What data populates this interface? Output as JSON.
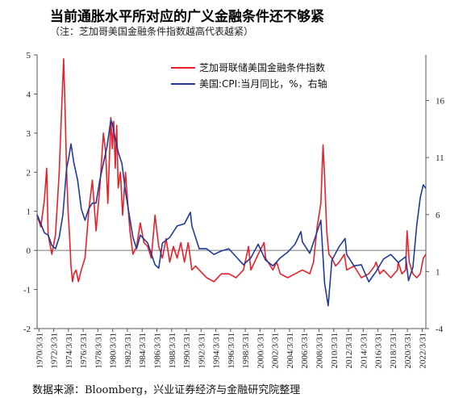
{
  "header": {
    "title": "当前通胀水平所对应的广义金融条件还不够紧",
    "subtitle": "（注：芝加哥美国金融条件指数越高代表越紧）"
  },
  "footer": {
    "source": "数据来源：Bloomberg，兴业证券经济与金融研究院整理"
  },
  "colors": {
    "series1": "#e8202a",
    "series2": "#1f3a9a",
    "axis": "#555555"
  },
  "chart_data": {
    "type": "line",
    "title": "当前通胀水平所对应的广义金融条件还不够紧",
    "xlabel": "",
    "x_ticks": [
      "1970/3/31",
      "1972/3/31",
      "1974/3/31",
      "1976/3/31",
      "1978/3/31",
      "1980/3/31",
      "1982/3/31",
      "1984/3/31",
      "1986/3/31",
      "1988/3/31",
      "1990/3/31",
      "1992/3/31",
      "1994/3/31",
      "1996/3/31",
      "1998/3/31",
      "2000/3/31",
      "2002/3/31",
      "2004/3/31",
      "2006/3/31",
      "2008/3/31",
      "2010/3/31",
      "2012/3/31",
      "2014/3/31",
      "2016/3/31",
      "2018/3/31",
      "2020/3/31",
      "2022/3/31"
    ],
    "xlim": [
      1970.0,
      2022.75
    ],
    "y_left": {
      "ylim": [
        -2,
        5
      ],
      "ticks": [
        "-2",
        "-1",
        "0",
        "1",
        "2",
        "3",
        "4",
        "5"
      ]
    },
    "y_right": {
      "ylim": [
        -4,
        20
      ],
      "ticks": [
        "-4",
        "1",
        "6",
        "11",
        "16"
      ]
    },
    "legend_position": "top-right",
    "series": [
      {
        "name": "芝加哥联储美国金融条件指数",
        "axis": "left",
        "x": [
          1970.0,
          1970.5,
          1971.0,
          1971.3,
          1971.5,
          1972.0,
          1972.5,
          1973.0,
          1973.3,
          1973.6,
          1973.8,
          1974.0,
          1974.2,
          1974.4,
          1974.6,
          1974.8,
          1975.0,
          1975.3,
          1975.6,
          1976.0,
          1976.5,
          1977.0,
          1977.5,
          1978.0,
          1978.5,
          1979.0,
          1979.3,
          1979.6,
          1980.0,
          1980.2,
          1980.4,
          1980.6,
          1980.8,
          1981.0,
          1981.3,
          1981.6,
          1982.0,
          1982.3,
          1982.6,
          1983.0,
          1983.5,
          1984.0,
          1984.5,
          1985.0,
          1985.5,
          1986.0,
          1986.5,
          1987.0,
          1987.5,
          1988.0,
          1988.5,
          1989.0,
          1989.5,
          1990.0,
          1990.5,
          1991.0,
          1991.5,
          1992.0,
          1993.0,
          1994.0,
          1995.0,
          1996.0,
          1997.0,
          1998.0,
          1998.7,
          1999.0,
          2000.0,
          2000.8,
          2001.0,
          2002.0,
          2002.5,
          2003.0,
          2004.0,
          2005.0,
          2006.0,
          2007.0,
          2007.5,
          2008.0,
          2008.5,
          2008.8,
          2009.0,
          2009.3,
          2009.6,
          2010.0,
          2010.5,
          2011.0,
          2011.7,
          2012.0,
          2013.0,
          2014.0,
          2015.0,
          2015.8,
          2016.0,
          2016.5,
          2017.0,
          2018.0,
          2018.9,
          2019.0,
          2019.5,
          2020.0,
          2020.2,
          2020.5,
          2021.0,
          2021.5,
          2022.0,
          2022.4,
          2022.75
        ],
        "values": [
          0.9,
          0.6,
          1.3,
          2.1,
          0.4,
          -0.1,
          0.4,
          2.0,
          3.5,
          4.9,
          3.6,
          2.1,
          1.0,
          0.4,
          -0.4,
          -0.8,
          -0.6,
          -0.5,
          -0.8,
          -0.5,
          -0.2,
          1.0,
          1.8,
          0.5,
          1.6,
          3.0,
          2.5,
          1.2,
          3.4,
          2.6,
          3.3,
          2.1,
          3.2,
          1.6,
          2.0,
          0.9,
          2.0,
          1.2,
          0.5,
          -0.1,
          0.1,
          0.7,
          0.2,
          0.1,
          -0.2,
          0.9,
          0.1,
          -0.2,
          0.3,
          -0.3,
          0.1,
          -0.2,
          0.2,
          -0.3,
          0.2,
          -0.5,
          -0.4,
          -0.5,
          -0.7,
          -0.8,
          -0.6,
          -0.6,
          -0.7,
          -0.5,
          0.1,
          -0.5,
          -0.1,
          0.2,
          -0.2,
          -0.5,
          -0.3,
          -0.6,
          -0.7,
          -0.6,
          -0.5,
          -0.6,
          -0.3,
          0.6,
          1.2,
          2.7,
          1.9,
          0.5,
          -0.1,
          -0.2,
          -0.4,
          -0.3,
          -0.1,
          -0.5,
          -0.4,
          -0.7,
          -0.6,
          -0.4,
          -0.3,
          -0.6,
          -0.5,
          -0.7,
          -0.5,
          -0.3,
          -0.6,
          -0.5,
          0.5,
          -0.3,
          -0.6,
          -0.7,
          -0.6,
          -0.2,
          -0.1
        ]
      },
      {
        "name": "美国:CPI:当月同比，%，右轴",
        "axis": "right",
        "x": [
          1970.0,
          1971.0,
          1971.5,
          1972.0,
          1972.5,
          1973.0,
          1973.5,
          1974.0,
          1974.3,
          1974.6,
          1975.0,
          1975.5,
          1976.0,
          1976.5,
          1977.0,
          1977.5,
          1978.0,
          1978.5,
          1979.0,
          1979.5,
          1980.0,
          1980.2,
          1980.5,
          1981.0,
          1981.5,
          1982.0,
          1982.5,
          1983.0,
          1983.5,
          1984.0,
          1985.0,
          1986.0,
          1986.5,
          1987.0,
          1988.0,
          1989.0,
          1990.0,
          1990.8,
          1991.0,
          1992.0,
          1993.0,
          1994.0,
          1995.0,
          1996.0,
          1997.0,
          1998.0,
          1999.0,
          2000.0,
          2001.0,
          2002.0,
          2003.0,
          2004.0,
          2005.0,
          2005.8,
          2006.0,
          2007.0,
          2008.0,
          2008.5,
          2009.0,
          2009.5,
          2010.0,
          2011.0,
          2011.8,
          2012.0,
          2013.0,
          2014.0,
          2015.0,
          2016.0,
          2017.0,
          2018.0,
          2019.0,
          2020.0,
          2020.4,
          2021.0,
          2021.5,
          2022.0,
          2022.4,
          2022.75
        ],
        "values": [
          6.0,
          4.4,
          4.2,
          3.3,
          3.0,
          4.0,
          6.0,
          10.0,
          11.0,
          12.2,
          10.5,
          9.0,
          6.5,
          5.5,
          6.5,
          7.0,
          7.0,
          9.0,
          10.5,
          12.0,
          14.3,
          14.0,
          13.0,
          11.5,
          10.5,
          8.0,
          6.0,
          4.0,
          3.0,
          4.2,
          3.5,
          1.6,
          1.3,
          3.5,
          4.0,
          5.0,
          5.2,
          6.2,
          5.0,
          3.0,
          3.0,
          2.5,
          2.8,
          3.0,
          2.3,
          1.6,
          2.2,
          3.4,
          2.0,
          1.5,
          2.2,
          2.7,
          3.4,
          4.5,
          3.6,
          2.6,
          4.5,
          5.5,
          0.0,
          -2.0,
          2.0,
          3.2,
          3.9,
          2.5,
          1.5,
          1.6,
          0.1,
          1.0,
          2.1,
          2.5,
          1.8,
          2.3,
          0.2,
          1.4,
          5.0,
          7.5,
          8.6,
          8.3
        ]
      }
    ]
  }
}
